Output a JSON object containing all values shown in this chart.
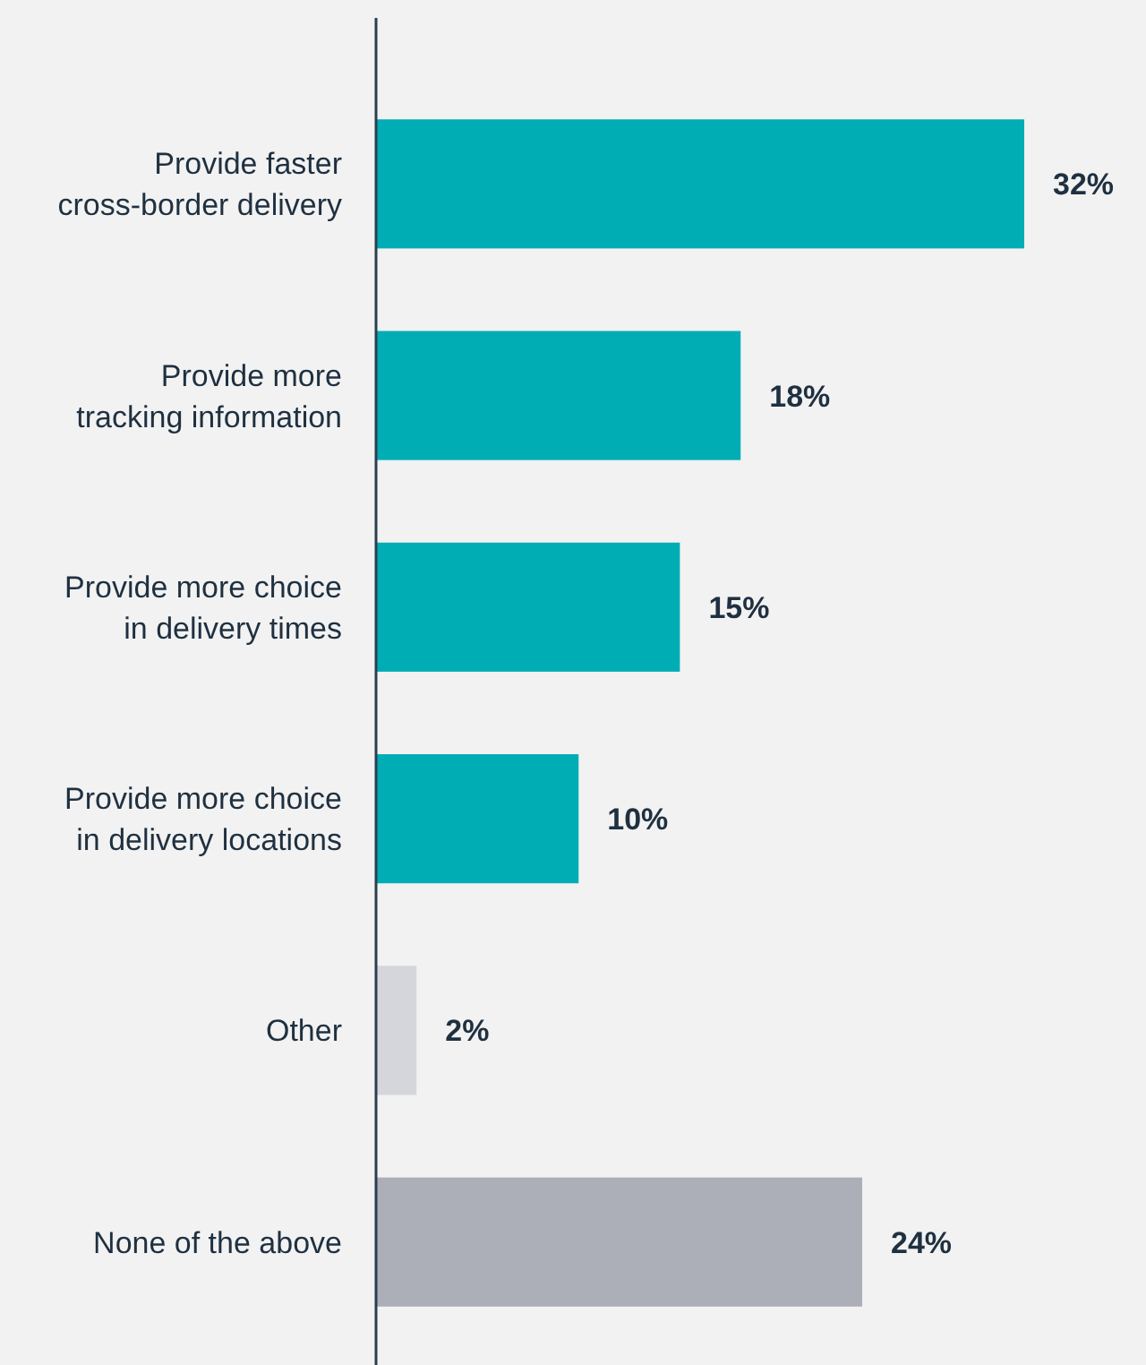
{
  "chart_data": {
    "type": "bar",
    "orientation": "horizontal",
    "categories": [
      "Provide faster cross-border delivery",
      "Provide more tracking information",
      "Provide more choice in delivery times",
      "Provide more choice in delivery locations",
      "Other",
      "None of the above"
    ],
    "values": [
      32,
      18,
      15,
      10,
      2,
      24
    ],
    "colors": [
      "#00adb5",
      "#00adb5",
      "#00adb5",
      "#00adb5",
      "#d5d6db",
      "#acaeb8"
    ],
    "value_labels": [
      "32%",
      "18%",
      "15%",
      "10%",
      "2%",
      "24%"
    ]
  }
}
